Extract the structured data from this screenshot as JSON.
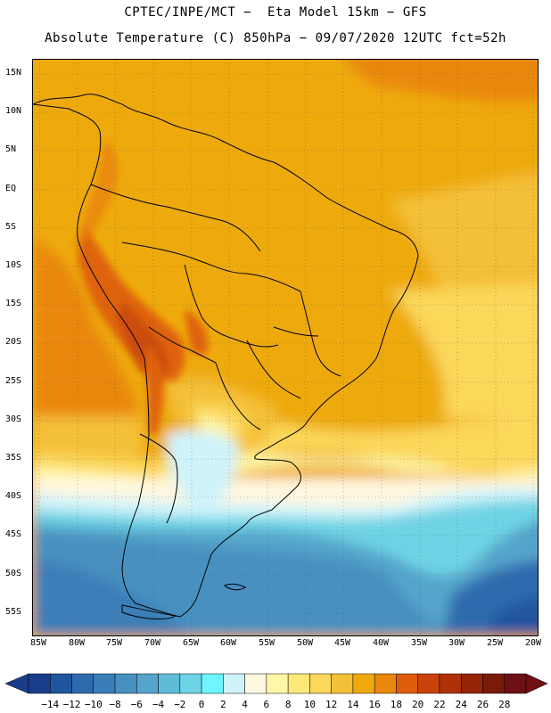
{
  "header": {
    "line1": "CPTEC/INPE/MCT −  Eta Model 15km − GFS",
    "line2": "Absolute Temperature (C) 850hPa − 09/07/2020 12UTC fct=52h"
  },
  "map": {
    "lat_labels": [
      "15N",
      "10N",
      "5N",
      "EQ",
      "5S",
      "10S",
      "15S",
      "20S",
      "25S",
      "30S",
      "35S",
      "40S",
      "45S",
      "50S",
      "55S"
    ],
    "lon_labels": [
      "85W",
      "80W",
      "75W",
      "70W",
      "65W",
      "60W",
      "55W",
      "50W",
      "45W",
      "40W",
      "35W",
      "30W",
      "25W",
      "20W"
    ],
    "land_outline_color": "#000000",
    "grid_style": "dotted"
  },
  "colorbar": {
    "colors": [
      "#1a3d8a",
      "#2055a0",
      "#2d6aae",
      "#3a7eb8",
      "#4790c0",
      "#55a4cb",
      "#5fbcd8",
      "#6ed3e4",
      "#6ff5ff",
      "#cff3fb",
      "#fff8e0",
      "#fff6a8",
      "#ffe87a",
      "#fbd75a",
      "#f4c038",
      "#eeaa0c",
      "#e9880d",
      "#de5c0b",
      "#c8420a",
      "#b0300a",
      "#962408",
      "#7a1a08",
      "#6e1014"
    ],
    "labels": [
      "−14",
      "−12",
      "−10",
      "−8",
      "−6",
      "−4",
      "−2",
      "0",
      "2",
      "4",
      "6",
      "8",
      "10",
      "12",
      "14",
      "16",
      "18",
      "20",
      "22",
      "24",
      "26",
      "28"
    ]
  }
}
